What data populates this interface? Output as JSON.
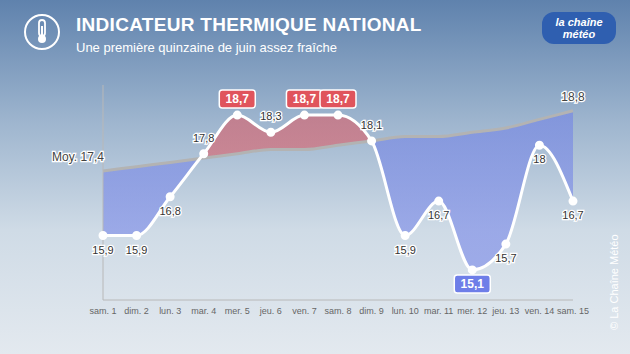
{
  "chart_data": {
    "type": "line",
    "title": "INDICATEUR THERMIQUE NATIONAL",
    "subtitle": "Une première quinzaine de juin assez fraîche",
    "annotations": [
      "la chaîne météo",
      "© La Chaîne Météo"
    ],
    "categories": [
      "sam. 1",
      "dim. 2",
      "lun. 3",
      "mar. 4",
      "mer. 5",
      "jeu. 6",
      "ven. 7",
      "sam. 8",
      "dim. 9",
      "lun. 10",
      "mar. 11",
      "mer. 12",
      "jeu. 13",
      "ven. 14",
      "sam. 15"
    ],
    "series": [
      {
        "color": "#ffffff",
        "values": [
          15.9,
          15.9,
          16.8,
          17.8,
          18.7,
          18.3,
          18.7,
          18.7,
          18.1,
          15.9,
          16.7,
          15.1,
          15.7,
          18,
          16.7
        ],
        "value_labels": [
          "15,9",
          "15,9",
          "16,8",
          "17,8",
          "18,7",
          "18,3",
          "18,7",
          "18,7",
          "18,1",
          "15,9",
          "16,7",
          "15,1",
          "15,7",
          "18",
          "16,7"
        ]
      },
      {
        "color": "#b3b3b3",
        "values": [
          17.4,
          17.5,
          17.6,
          17.7,
          17.8,
          17.9,
          17.9,
          18.0,
          18.1,
          18.2,
          18.2,
          18.3,
          18.4,
          18.6,
          18.8
        ],
        "value_labels": [
          "Moy. 17,4",
          null,
          null,
          null,
          null,
          null,
          null,
          null,
          null,
          null,
          null,
          null,
          null,
          null,
          "18,8"
        ]
      }
    ],
    "ylim": [
      14.4,
      19.4
    ],
    "yticks": [],
    "tick_labels": "x",
    "data_labels": true,
    "grid": false
  }
}
